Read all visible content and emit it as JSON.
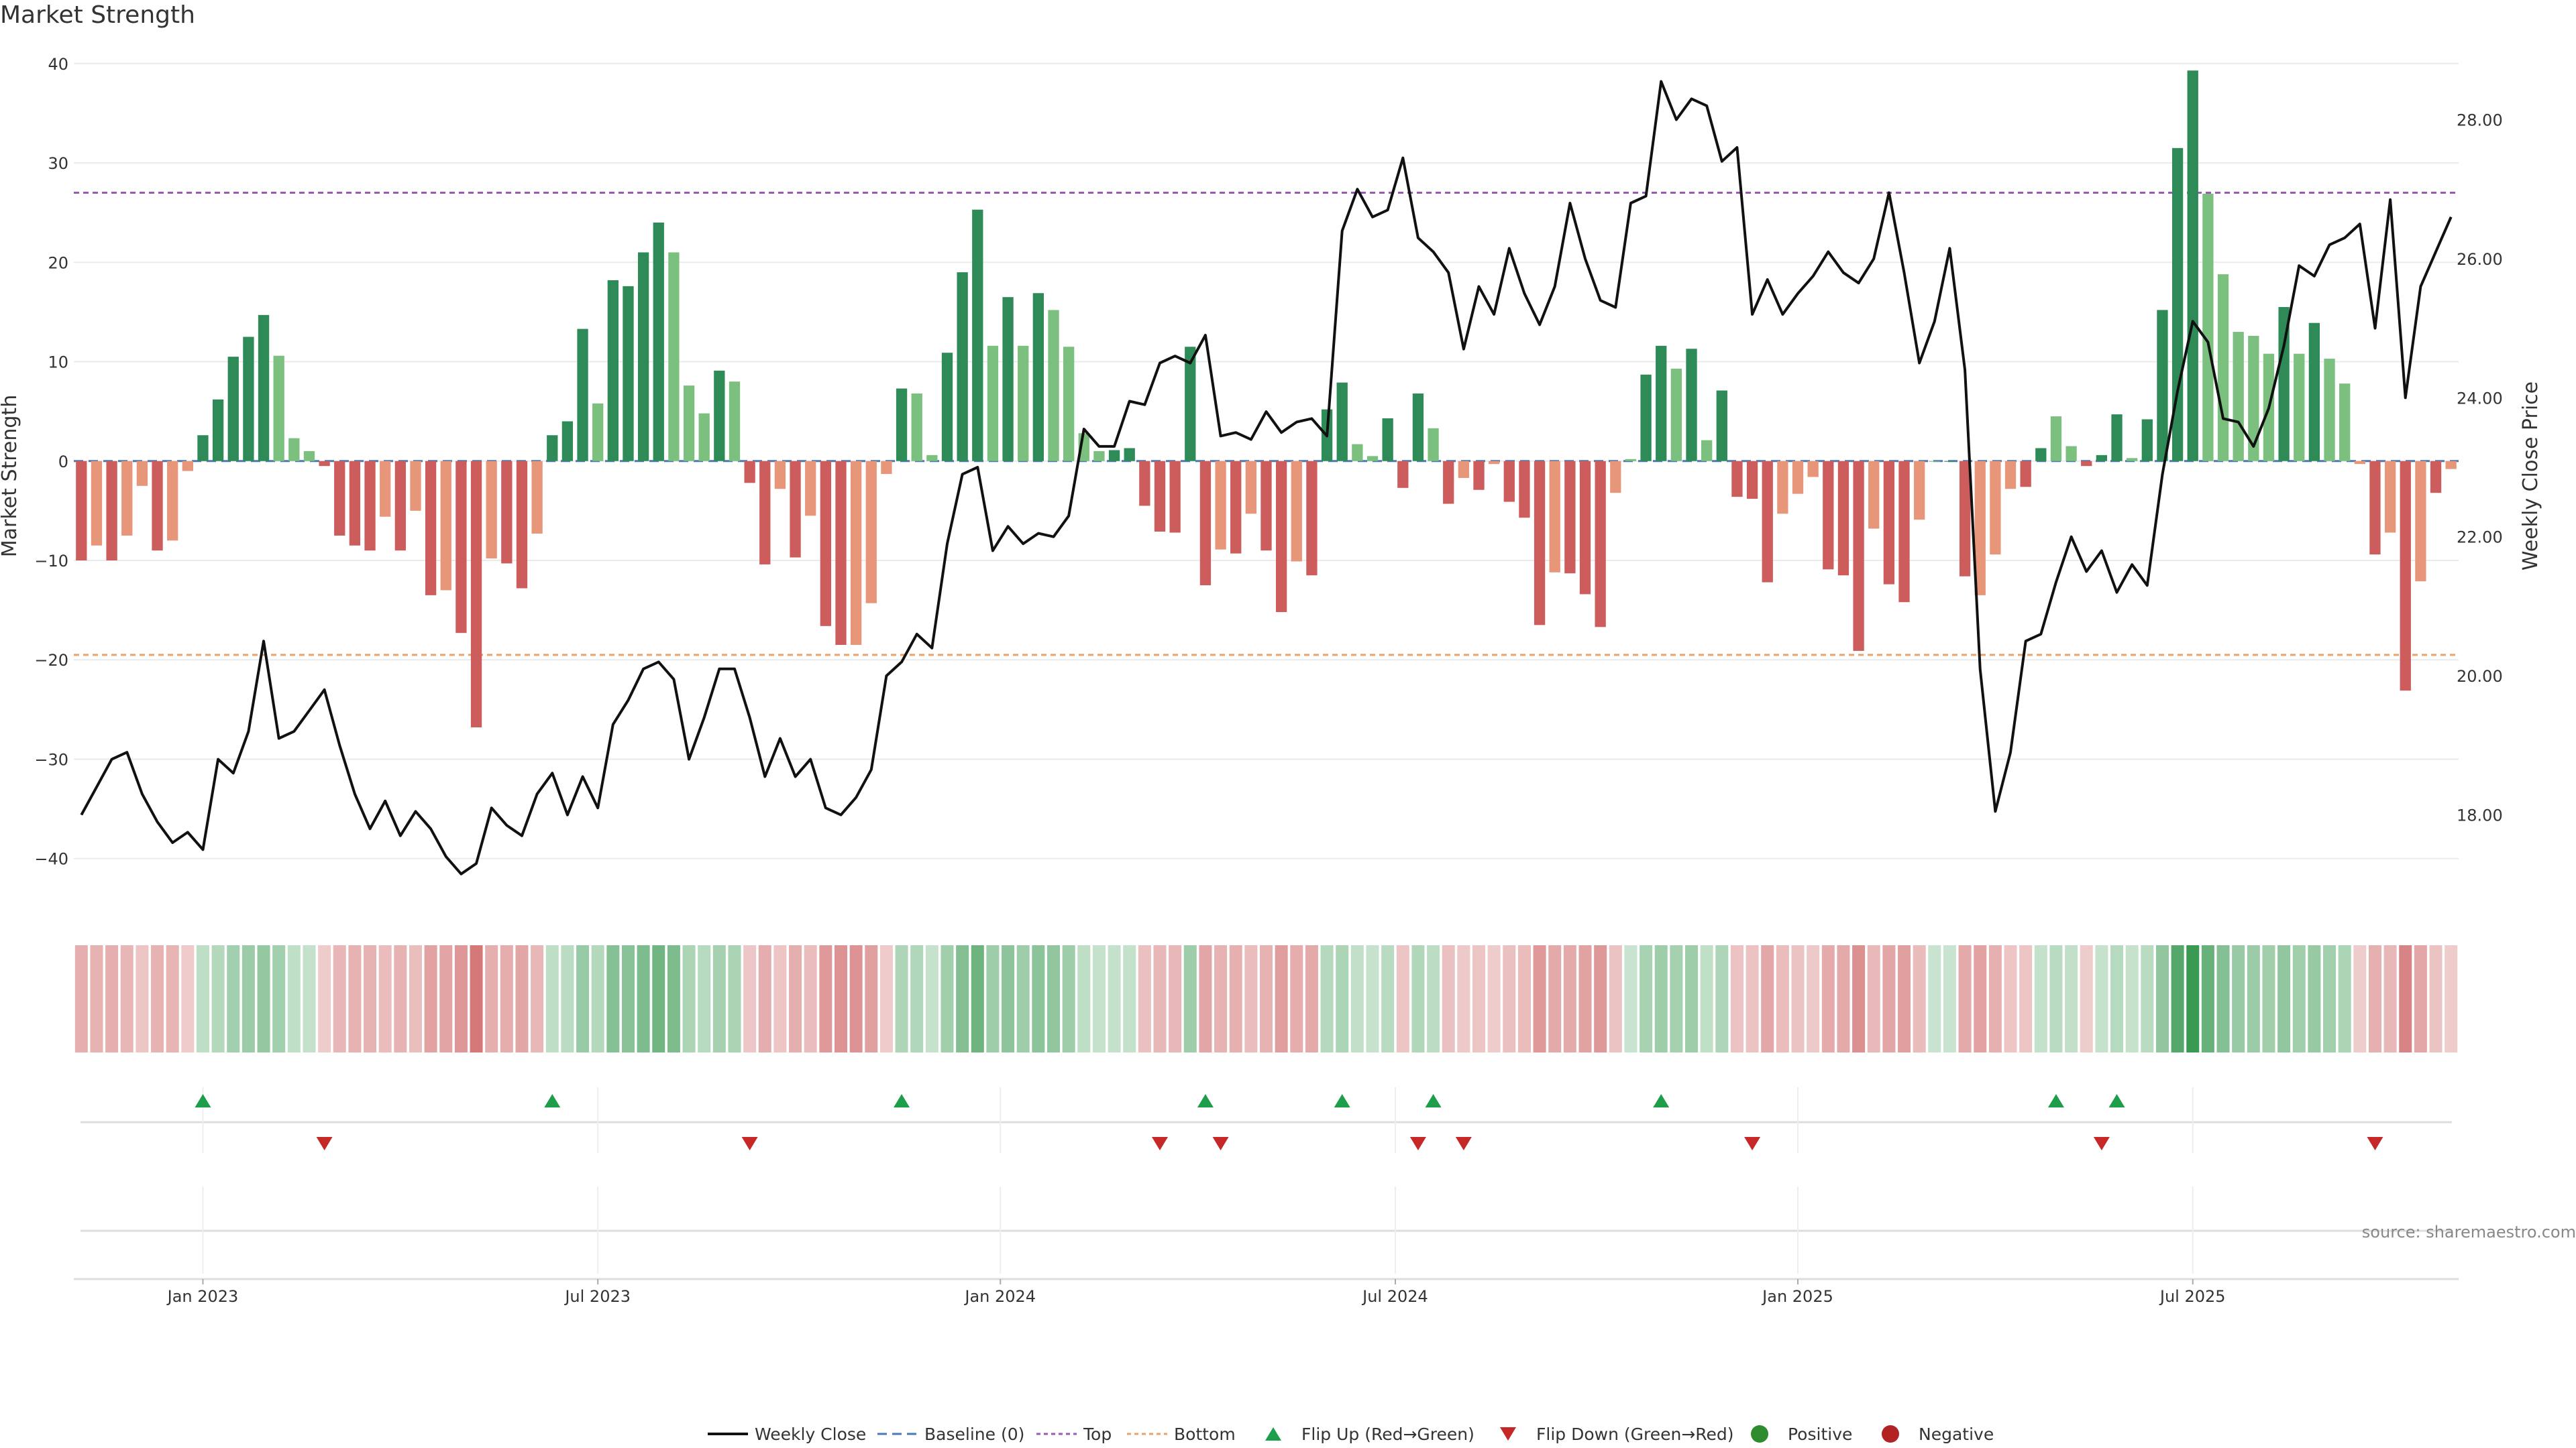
{
  "page": {
    "title": "Market Strength",
    "source": "source: sharemaestro.com"
  },
  "colors": {
    "strong_green": "#2e8b57",
    "light_green": "#7cc07f",
    "strong_red": "#cd5c5c",
    "light_red": "#e8967a",
    "line": "#111111",
    "top": "#9b59b6",
    "bottom": "#e8a26a",
    "baseline": "#4a7ab5",
    "flip_up": "#1e9e4a",
    "flip_down": "#c62828",
    "positive": "#2e8b2e",
    "negative": "#b22222"
  },
  "chart_data": {
    "type": "bar+line",
    "title": "Market Strength",
    "ylabel_left": "Market Strength",
    "ylabel_right": "Weekly Close Price",
    "ylim_left": [
      -44,
      41
    ],
    "ylim_right": [
      16.8,
      28.95
    ],
    "left_ticks": [
      "40",
      "30",
      "20",
      "10",
      "0",
      "−10",
      "−20",
      "−30",
      "−40"
    ],
    "left_tick_values": [
      40,
      30,
      20,
      10,
      0,
      -10,
      -20,
      -30,
      -40
    ],
    "right_ticks": [
      "28.00",
      "26.00",
      "24.00",
      "22.00",
      "20.00",
      "18.00"
    ],
    "right_tick_values": [
      28,
      26,
      24,
      22,
      20,
      18
    ],
    "x_ticks": [
      "Jan 2023",
      "Jul 2023",
      "Jan 2024",
      "Jul 2024",
      "Jan 2025",
      "Jul 2025"
    ],
    "x_tick_weeks": [
      8.5,
      34.5,
      61,
      87,
      113.5,
      139.5
    ],
    "top_line": 27,
    "bottom_line": -19.5,
    "strength": [
      -10,
      -8.5,
      -10,
      -7.5,
      -2.5,
      -9,
      -8,
      -1,
      2.6,
      6.2,
      10.5,
      12.5,
      14.7,
      10.6,
      2.3,
      1,
      -0.5,
      -7.5,
      -8.5,
      -9,
      -5.6,
      -9,
      -5,
      -13.5,
      -13,
      -17.3,
      -26.8,
      -9.8,
      -10.3,
      -12.8,
      -7.3,
      2.6,
      4,
      13.3,
      5.8,
      18.2,
      17.6,
      21,
      24,
      21,
      7.6,
      4.8,
      9.1,
      8,
      -2.2,
      -10.4,
      -2.8,
      -9.7,
      -5.5,
      -16.6,
      -18.5,
      -18.5,
      -14.3,
      -1.3,
      7.3,
      6.8,
      0.6,
      10.9,
      19,
      25.3,
      11.6,
      16.5,
      11.6,
      16.9,
      15.2,
      11.5,
      2.8,
      1,
      1.1,
      1.3,
      -4.5,
      -7.1,
      -7.2,
      11.5,
      -12.5,
      -8.9,
      -9.3,
      -5.3,
      -9,
      -15.2,
      -10.1,
      -11.5,
      5.2,
      7.9,
      1.7,
      0.5,
      4.3,
      -2.7,
      6.8,
      3.3,
      -4.3,
      -1.7,
      -2.9,
      -0.3,
      -4.1,
      -5.7,
      -16.5,
      -11.2,
      -11.3,
      -13.4,
      -16.7,
      -3.2,
      0.2,
      8.7,
      11.6,
      9.3,
      11.3,
      2.1,
      7.1,
      -3.6,
      -3.8,
      -12.2,
      -5.3,
      -3.3,
      -1.6,
      -10.9,
      -11.5,
      -19.1,
      -6.8,
      -12.4,
      -14.2,
      -5.9,
      0,
      0,
      -11.6,
      -13.5,
      -9.4,
      -2.8,
      -2.6,
      1.3,
      4.5,
      1.5,
      -0.5,
      0.6,
      4.7,
      0.3,
      4.2,
      15.2,
      31.5,
      39.3,
      26.9,
      18.8,
      13,
      12.6,
      10.8,
      15.5,
      10.8,
      13.9,
      10.3,
      7.8,
      -0.3,
      -9.4,
      -7.2,
      -23.1,
      -12.1,
      -3.2,
      -0.8
    ],
    "bar_shade": [
      "s",
      "l",
      "s",
      "l",
      "l",
      "s",
      "l",
      "l",
      "s",
      "s",
      "s",
      "s",
      "s",
      "l",
      "l",
      "l",
      "s",
      "s",
      "s",
      "s",
      "l",
      "s",
      "l",
      "s",
      "l",
      "s",
      "s",
      "l",
      "s",
      "s",
      "l",
      "s",
      "s",
      "s",
      "l",
      "s",
      "s",
      "s",
      "s",
      "l",
      "l",
      "l",
      "s",
      "l",
      "s",
      "s",
      "l",
      "s",
      "l",
      "s",
      "s",
      "l",
      "l",
      "l",
      "s",
      "l",
      "l",
      "s",
      "s",
      "s",
      "l",
      "s",
      "l",
      "s",
      "l",
      "l",
      "l",
      "l",
      "s",
      "s",
      "s",
      "s",
      "s",
      "s",
      "s",
      "l",
      "s",
      "l",
      "s",
      "s",
      "l",
      "s",
      "s",
      "s",
      "l",
      "l",
      "s",
      "s",
      "s",
      "l",
      "s",
      "l",
      "s",
      "l",
      "s",
      "s",
      "s",
      "l",
      "s",
      "s",
      "s",
      "l",
      "l",
      "s",
      "s",
      "l",
      "s",
      "l",
      "s",
      "s",
      "s",
      "s",
      "l",
      "l",
      "l",
      "s",
      "s",
      "s",
      "l",
      "s",
      "s",
      "l",
      "l",
      "s",
      "s",
      "l",
      "l",
      "l",
      "s",
      "s",
      "l",
      "l",
      "s",
      "s",
      "s",
      "l",
      "s",
      "s",
      "s",
      "s",
      "l",
      "l",
      "l",
      "l",
      "l",
      "s",
      "l",
      "s",
      "l",
      "l",
      "l",
      "s",
      "l",
      "s",
      "l",
      "s",
      "l"
    ],
    "close": [
      18,
      18.4,
      18.8,
      18.9,
      18.3,
      17.9,
      17.6,
      17.75,
      17.5,
      18.8,
      18.6,
      19.2,
      20.5,
      19.1,
      19.2,
      19.5,
      19.8,
      19,
      18.3,
      17.8,
      18.2,
      17.7,
      18.05,
      17.8,
      17.4,
      17.15,
      17.3,
      18.1,
      17.85,
      17.7,
      18.3,
      18.6,
      18,
      18.55,
      18.1,
      19.3,
      19.65,
      20.1,
      20.2,
      19.95,
      18.8,
      19.4,
      20.1,
      20.1,
      19.4,
      18.55,
      19.1,
      18.55,
      18.8,
      18.1,
      18,
      18.25,
      18.65,
      20,
      20.2,
      20.6,
      20.4,
      21.9,
      22.9,
      23,
      21.8,
      22.15,
      21.9,
      22.05,
      22,
      22.3,
      23.55,
      23.3,
      23.3,
      23.95,
      23.9,
      24.5,
      24.6,
      24.5,
      24.9,
      23.45,
      23.5,
      23.4,
      23.8,
      23.5,
      23.65,
      23.7,
      23.45,
      26.4,
      27,
      26.6,
      26.7,
      27.45,
      26.3,
      26.1,
      25.8,
      24.7,
      25.6,
      25.2,
      26.15,
      25.5,
      25.05,
      25.6,
      26.8,
      26,
      25.4,
      25.3,
      26.8,
      26.9,
      28.55,
      28,
      28.3,
      28.2,
      27.4,
      27.6,
      25.2,
      25.7,
      25.2,
      25.5,
      25.75,
      26.1,
      25.8,
      25.65,
      26,
      26.95,
      25.8,
      24.5,
      25.1,
      26.15,
      24.4,
      20.1,
      18.05,
      18.9,
      20.5,
      20.6,
      21.35,
      22,
      21.5,
      21.8,
      21.2,
      21.6,
      21.3,
      22.9,
      24.1,
      25.1,
      24.8,
      23.7,
      23.65,
      23.3,
      23.85,
      24.75,
      25.9,
      25.75,
      26.2,
      26.3,
      26.5,
      25,
      26.85,
      24,
      25.6,
      26.1,
      26.6
    ],
    "heat_strip": {
      "row": "heat"
    },
    "flip_up_weeks": [
      8,
      31,
      54,
      74,
      83,
      89,
      104,
      130,
      134
    ],
    "flip_down_weeks": [
      16,
      44,
      71,
      75,
      88,
      91,
      110,
      133,
      151
    ],
    "legend": [
      "Weekly Close",
      "Baseline (0)",
      "Top",
      "Bottom",
      "Flip Up (Red→Green)",
      "Flip Down (Green→Red)",
      "Positive",
      "Negative"
    ]
  }
}
